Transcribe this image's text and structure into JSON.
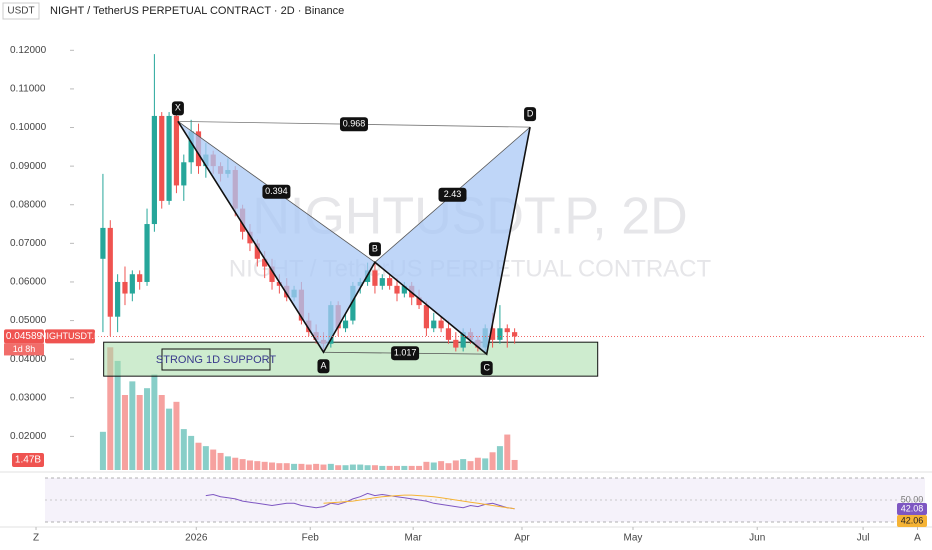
{
  "chart_data": {
    "type": "candlestick",
    "quote": "USDT",
    "title": "NIGHT / TetherUS PERPETUAL CONTRACT · 2D · Binance",
    "watermark": "NIGHTUSDT.P, 2D",
    "watermark_subtitle": "NIGHT / TetherUS PERPETUAL CONTRACT",
    "colors": {
      "up": "#26a69a",
      "down": "#ef5350"
    },
    "open": [
      0.066,
      0.074,
      0.051,
      0.06,
      0.057,
      0.062,
      0.06,
      0.075,
      0.103,
      0.081,
      0.103,
      0.085,
      0.091,
      0.099,
      0.09,
      0.093,
      0.09,
      0.088,
      0.089,
      0.079,
      0.073,
      0.07,
      0.066,
      0.064,
      0.06,
      0.059,
      0.056,
      0.058,
      0.05,
      0.047,
      0.045,
      0.044,
      0.054,
      0.048,
      0.05,
      0.059,
      0.06,
      0.063,
      0.059,
      0.061,
      0.059,
      0.057,
      0.059,
      0.056,
      0.054,
      0.048,
      0.05,
      0.048,
      0.045,
      0.043,
      0.047,
      0.045,
      0.043,
      0.048,
      0.045,
      0.048,
      0.047
    ],
    "high": [
      0.088,
      0.076,
      0.062,
      0.064,
      0.063,
      0.063,
      0.079,
      0.119,
      0.104,
      0.104,
      0.105,
      0.093,
      0.102,
      0.101,
      0.096,
      0.094,
      0.091,
      0.092,
      0.09,
      0.08,
      0.075,
      0.071,
      0.068,
      0.066,
      0.062,
      0.061,
      0.059,
      0.06,
      0.052,
      0.049,
      0.047,
      0.055,
      0.055,
      0.052,
      0.06,
      0.061,
      0.065,
      0.065,
      0.062,
      0.062,
      0.061,
      0.06,
      0.06,
      0.058,
      0.055,
      0.052,
      0.051,
      0.05,
      0.047,
      0.048,
      0.048,
      0.046,
      0.049,
      0.052,
      0.054,
      0.049,
      0.048
    ],
    "low": [
      0.047,
      0.046,
      0.047,
      0.054,
      0.055,
      0.058,
      0.059,
      0.073,
      0.079,
      0.08,
      0.083,
      0.081,
      0.088,
      0.088,
      0.087,
      0.088,
      0.086,
      0.087,
      0.077,
      0.071,
      0.068,
      0.064,
      0.061,
      0.058,
      0.057,
      0.055,
      0.055,
      0.049,
      0.046,
      0.044,
      0.0418,
      0.043,
      0.046,
      0.047,
      0.049,
      0.057,
      0.059,
      0.057,
      0.058,
      0.058,
      0.055,
      0.056,
      0.054,
      0.053,
      0.046,
      0.047,
      0.047,
      0.044,
      0.042,
      0.042,
      0.044,
      0.042,
      0.0413,
      0.043,
      0.044,
      0.043,
      0.044
    ],
    "close": [
      0.074,
      0.051,
      0.06,
      0.057,
      0.062,
      0.06,
      0.075,
      0.103,
      0.081,
      0.103,
      0.085,
      0.091,
      0.099,
      0.09,
      0.093,
      0.09,
      0.088,
      0.089,
      0.079,
      0.073,
      0.07,
      0.066,
      0.064,
      0.06,
      0.059,
      0.056,
      0.058,
      0.05,
      0.047,
      0.045,
      0.044,
      0.054,
      0.048,
      0.05,
      0.059,
      0.06,
      0.063,
      0.059,
      0.061,
      0.059,
      0.057,
      0.059,
      0.056,
      0.054,
      0.048,
      0.05,
      0.048,
      0.045,
      0.043,
      0.047,
      0.045,
      0.043,
      0.048,
      0.045,
      0.048,
      0.047,
      0.04589
    ],
    "ylim": [
      0.01,
      0.125
    ],
    "yticks": [
      {
        "value": 0.12,
        "label": "0.12000"
      },
      {
        "value": 0.11,
        "label": "0.11000"
      },
      {
        "value": 0.1,
        "label": "0.10000"
      },
      {
        "value": 0.09,
        "label": "0.09000"
      },
      {
        "value": 0.08,
        "label": "0.08000"
      },
      {
        "value": 0.07,
        "label": "0.07000"
      },
      {
        "value": 0.06,
        "label": "0.06000"
      },
      {
        "value": 0.05,
        "label": "0.05000"
      },
      {
        "value": 0.04,
        "label": "0.04000"
      },
      {
        "value": 0.03,
        "label": "0.03000"
      },
      {
        "value": 0.02,
        "label": "0.02000"
      }
    ],
    "xlim": [
      -14,
      112.5
    ],
    "xticks": [
      {
        "value": -9.1,
        "label": "Z"
      },
      {
        "value": 12.7,
        "label": "2026"
      },
      {
        "value": 28.2,
        "label": "Feb"
      },
      {
        "value": 42.2,
        "label": "Mar"
      },
      {
        "value": 57.0,
        "label": "Apr"
      },
      {
        "value": 72.1,
        "label": "May"
      },
      {
        "value": 89.0,
        "label": "Jun"
      },
      {
        "value": 103.4,
        "label": "Jul"
      },
      {
        "value": 110.8,
        "label": "A"
      }
    ],
    "last_price": {
      "value": 0.04589,
      "label": "0.04589"
    },
    "symbol": "NIGHTUSDT.P",
    "countdown": "1d 8h",
    "volume": {
      "ylim": [
        0,
        22
      ],
      "values": [
        5.6,
        18,
        16,
        11,
        13,
        11,
        12,
        14,
        11,
        9,
        10,
        6,
        5,
        4,
        3.5,
        3,
        2.5,
        2,
        1.8,
        1.6,
        1.4,
        1.3,
        1.2,
        1.1,
        1.0,
        1.0,
        0.9,
        0.9,
        0.8,
        0.9,
        0.8,
        0.9,
        0.7,
        0.7,
        0.8,
        0.8,
        0.7,
        0.7,
        0.6,
        0.6,
        0.6,
        0.6,
        0.6,
        0.6,
        1.2,
        1.1,
        1.3,
        1.0,
        1.4,
        1.6,
        1.3,
        1.8,
        1.7,
        2.6,
        3.5,
        5.2,
        1.47
      ],
      "value_labels": [
        null,
        null,
        null,
        null,
        null,
        null,
        null,
        null,
        null,
        null,
        null,
        null,
        null,
        null,
        null,
        null,
        null,
        null,
        null,
        null,
        null,
        null,
        null,
        null,
        null,
        null,
        null,
        null,
        null,
        null,
        null,
        null,
        null,
        null,
        null,
        null,
        null,
        null,
        null,
        null,
        null,
        null,
        null,
        null,
        null,
        null,
        null,
        null,
        null,
        null,
        null,
        null,
        null,
        null,
        null,
        null,
        "1.47B"
      ]
    },
    "pattern": {
      "points": [
        {
          "label": "X",
          "x": 10.2,
          "y": 0.1016
        },
        {
          "label": "A",
          "x": 30.0,
          "y": 0.0418
        },
        {
          "label": "B",
          "x": 37.0,
          "y": 0.0651
        },
        {
          "label": "C",
          "x": 52.2,
          "y": 0.0413
        },
        {
          "label": "D",
          "x": 58.1,
          "y": 0.1001
        }
      ],
      "ratios": {
        "XB": 0.394,
        "BD": 2.43,
        "XD": 0.968,
        "AC": 1.017
      },
      "fill": "#a9c8f5"
    },
    "support_zone": {
      "label": "STRONG 1D SUPPORT",
      "xlim": [
        0.1,
        67.3
      ],
      "ylim": [
        0.0356,
        0.0444
      ],
      "color": "#a5dca8"
    },
    "rsi": {
      "ylim": [
        30,
        70
      ],
      "bands": [
        70,
        30
      ],
      "yticks": [
        {
          "value": 50,
          "label": "50.00"
        }
      ],
      "series": [
        {
          "name": "RSI",
          "color": "#7e57c2",
          "values": [
            null,
            null,
            null,
            null,
            null,
            null,
            null,
            null,
            null,
            null,
            null,
            null,
            null,
            null,
            54,
            55,
            53,
            52,
            51,
            49,
            48,
            47,
            46,
            45,
            46,
            47,
            47,
            45,
            44,
            43,
            44,
            47,
            46,
            48,
            51,
            53,
            56,
            54,
            55,
            54,
            53,
            52,
            51,
            50,
            49,
            47,
            46,
            45,
            44,
            43,
            45,
            44,
            46,
            47,
            45,
            43,
            42.08
          ]
        },
        {
          "name": "RSI-based MA",
          "color": "#f5b335",
          "values": [
            null,
            null,
            null,
            null,
            null,
            null,
            null,
            null,
            null,
            null,
            null,
            null,
            null,
            null,
            null,
            null,
            null,
            null,
            null,
            null,
            null,
            null,
            null,
            null,
            null,
            null,
            null,
            null,
            null,
            null,
            47,
            47.5,
            48,
            48.5,
            49,
            50,
            51,
            52,
            53,
            53.5,
            54,
            54.5,
            54.5,
            54,
            53.5,
            53,
            52,
            51,
            50,
            49,
            48,
            47,
            46,
            45,
            44,
            43,
            42.06
          ]
        }
      ]
    }
  }
}
